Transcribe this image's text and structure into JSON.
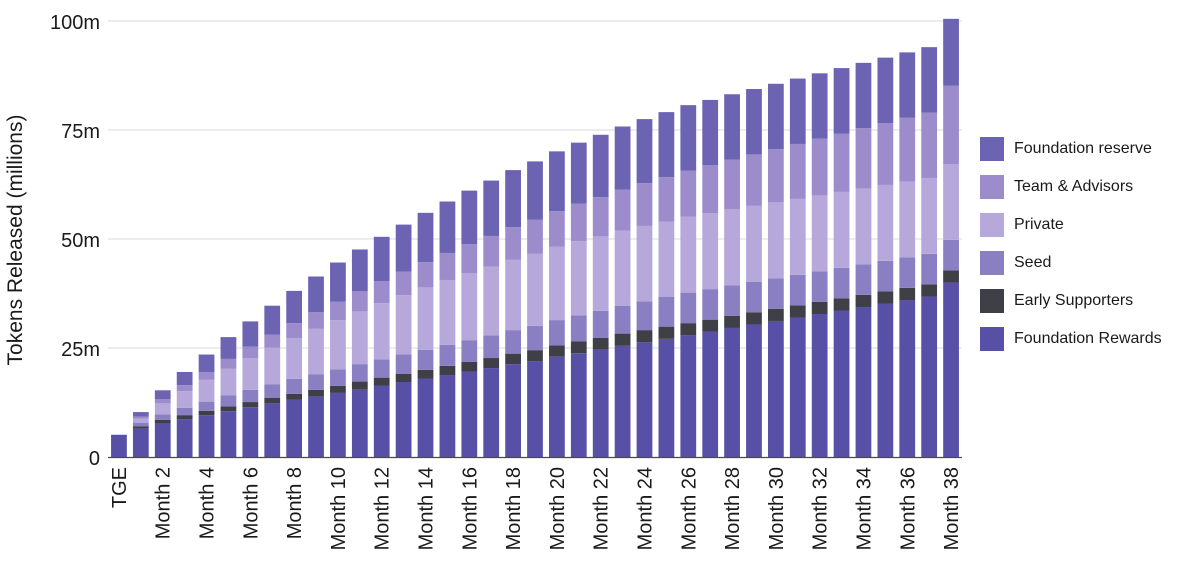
{
  "chart_data": {
    "type": "bar",
    "stacked": true,
    "ylabel": "Tokens Released (millions)",
    "ylim": [
      0,
      100
    ],
    "y_ticks": [
      {
        "value": 0,
        "label": "0"
      },
      {
        "value": 25,
        "label": "25m"
      },
      {
        "value": 50,
        "label": "50m"
      },
      {
        "value": 75,
        "label": "75m"
      },
      {
        "value": 100,
        "label": "100m"
      }
    ],
    "categories": [
      "TGE",
      "Month 1",
      "Month 2",
      "Month 3",
      "Month 4",
      "Month 5",
      "Month 6",
      "Month 7",
      "Month 8",
      "Month 9",
      "Month 10",
      "Month 11",
      "Month 12",
      "Month 13",
      "Month 14",
      "Month 15",
      "Month 16",
      "Month 17",
      "Month 18",
      "Month 19",
      "Month 20",
      "Month 21",
      "Month 22",
      "Month 23",
      "Month 24",
      "Month 25",
      "Month 26",
      "Month 27",
      "Month 28",
      "Month 29",
      "Month 30",
      "Month 31",
      "Month 32",
      "Month 33",
      "Month 34",
      "Month 35",
      "Month 36",
      "Month 37",
      "Month 38"
    ],
    "visible_tick_labels": [
      "TGE",
      "Month 2",
      "Month 4",
      "Month 6",
      "Month 8",
      "Month 10",
      "Month 12",
      "Month 14",
      "Month 16",
      "Month 18",
      "Month 20",
      "Month 22",
      "Month 24",
      "Month 26",
      "Month 28",
      "Month 30",
      "Month 32",
      "Month 34",
      "Month 36",
      "Month 38"
    ],
    "series": [
      {
        "name": "Foundation Rewards",
        "color": "#5850a6",
        "values": [
          5.1,
          6.5,
          7.7,
          8.7,
          9.6,
          10.5,
          11.4,
          12.3,
          13.1,
          13.9,
          14.7,
          15.6,
          16.4,
          17.2,
          18.0,
          18.8,
          19.6,
          20.4,
          21.3,
          22.0,
          23.0,
          23.8,
          24.6,
          25.5,
          26.3,
          27.1,
          27.9,
          28.7,
          29.6,
          30.4,
          31.2,
          32.0,
          32.8,
          33.6,
          34.4,
          35.2,
          36.0,
          36.8,
          40.0
        ]
      },
      {
        "name": "Early Supporters",
        "color": "#3f3f48",
        "values": [
          0,
          0.5,
          0.8,
          0.9,
          1.0,
          1.1,
          1.2,
          1.3,
          1.4,
          1.5,
          1.6,
          1.7,
          1.8,
          1.9,
          2.0,
          2.1,
          2.2,
          2.3,
          2.4,
          2.5,
          2.6,
          2.7,
          2.7,
          2.8,
          2.8,
          2.8,
          2.8,
          2.8,
          2.8,
          2.8,
          2.8,
          2.8,
          2.8,
          2.8,
          2.8,
          2.8,
          2.8,
          2.8,
          2.8
        ]
      },
      {
        "name": "Seed",
        "color": "#8a7fc2",
        "values": [
          0,
          0.8,
          1.3,
          1.7,
          2.1,
          2.5,
          2.8,
          3.1,
          3.4,
          3.6,
          3.8,
          4.0,
          4.2,
          4.4,
          4.6,
          4.8,
          5.0,
          5.2,
          5.4,
          5.6,
          5.8,
          6.0,
          6.2,
          6.4,
          6.6,
          6.8,
          7.0,
          7.0,
          7.0,
          7.0,
          7.0,
          7.0,
          7.0,
          7.0,
          7.0,
          7.0,
          7.0,
          7.0,
          7.0
        ]
      },
      {
        "name": "Private",
        "color": "#b6a8da",
        "values": [
          0,
          1.0,
          2.5,
          3.8,
          5.0,
          6.2,
          7.3,
          8.4,
          9.4,
          10.4,
          11.3,
          12.1,
          12.9,
          13.6,
          14.3,
          14.9,
          15.4,
          15.8,
          16.2,
          16.5,
          16.8,
          17.0,
          17.1,
          17.2,
          17.3,
          17.3,
          17.4,
          17.4,
          17.4,
          17.4,
          17.4,
          17.4,
          17.4,
          17.4,
          17.4,
          17.4,
          17.4,
          17.4,
          17.4
        ]
      },
      {
        "name": "Team & Advisors",
        "color": "#9c8ccc",
        "values": [
          0,
          0.5,
          1.0,
          1.4,
          1.8,
          2.2,
          2.6,
          3.0,
          3.4,
          3.8,
          4.2,
          4.6,
          5.0,
          5.4,
          5.8,
          6.2,
          6.6,
          7.0,
          7.4,
          7.8,
          8.2,
          8.6,
          9.0,
          9.4,
          9.8,
          10.2,
          10.6,
          11.0,
          11.4,
          11.8,
          12.2,
          12.6,
          13.0,
          13.4,
          13.8,
          14.2,
          14.6,
          15.0,
          18.0
        ]
      },
      {
        "name": "Foundation reserve",
        "color": "#6c63b3",
        "values": [
          0,
          1.0,
          2.0,
          3.0,
          4.0,
          5.0,
          5.8,
          6.6,
          7.4,
          8.2,
          9.0,
          9.6,
          10.2,
          10.8,
          11.3,
          11.8,
          12.3,
          12.7,
          13.1,
          13.4,
          13.7,
          14.0,
          14.3,
          14.5,
          14.7,
          14.9,
          15.0,
          15.0,
          15.0,
          15.0,
          15.0,
          15.0,
          15.0,
          15.0,
          15.0,
          15.0,
          15.0,
          15.0,
          15.3
        ]
      }
    ],
    "legend": {
      "placement": "right",
      "items": [
        {
          "label": "Foundation reserve",
          "color": "#6c63b3"
        },
        {
          "label": "Team & Advisors",
          "color": "#9c8ccc"
        },
        {
          "label": "Private",
          "color": "#b6a8da"
        },
        {
          "label": "Seed",
          "color": "#8a7fc2"
        },
        {
          "label": "Early Supporters",
          "color": "#3f3f48"
        },
        {
          "label": "Foundation Rewards",
          "color": "#5850a6"
        }
      ]
    }
  }
}
